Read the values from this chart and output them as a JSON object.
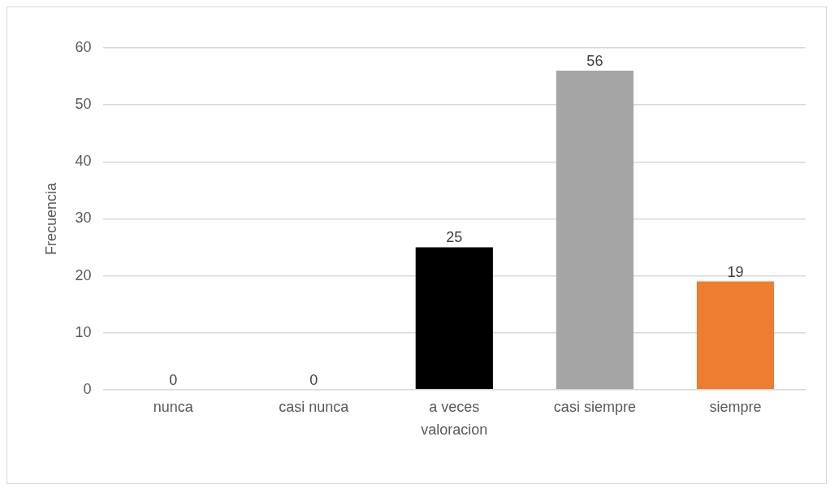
{
  "chart_data": {
    "type": "bar",
    "xlabel": "valoracion",
    "ylabel": "Frecuencia",
    "categories": [
      "nunca",
      "casi nunca",
      "a veces",
      "casi siempre",
      "siempre"
    ],
    "values": [
      0,
      0,
      25,
      56,
      19
    ],
    "colors": [
      "#2f5597",
      "#548235",
      "#000000",
      "#a5a5a5",
      "#ed7d31"
    ],
    "ylim": [
      0,
      60
    ],
    "yticks": [
      0,
      10,
      20,
      30,
      40,
      50,
      60
    ],
    "grid": "y",
    "data_labels": true
  }
}
